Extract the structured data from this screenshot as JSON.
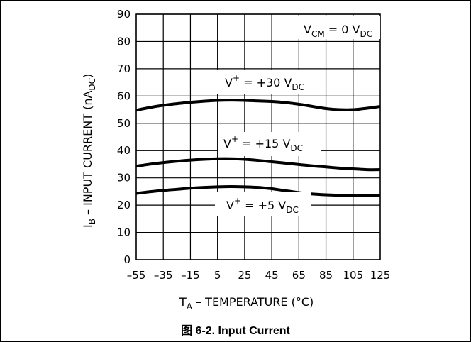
{
  "figure": {
    "caption": "图 6-2. Input Current"
  },
  "chart_data": {
    "type": "line",
    "title": "",
    "xlabel": {
      "main": "T",
      "sub": "A",
      "rest": " – TEMPERATURE (°C)"
    },
    "ylabel": {
      "main": "I",
      "sub": "B",
      "rest": " – INPUT CURRENT (nA",
      "unit_sub": "DC",
      "close": ")"
    },
    "xlim": [
      -55,
      125
    ],
    "ylim": [
      0,
      90
    ],
    "x_ticks": [
      -55,
      -35,
      -15,
      5,
      25,
      45,
      65,
      85,
      105,
      125
    ],
    "y_ticks": [
      0,
      10,
      20,
      30,
      40,
      50,
      60,
      70,
      80,
      90
    ],
    "grid": true,
    "condition": {
      "main": "V",
      "sub1": "CM",
      "mid": " = 0 V",
      "sub2": "DC"
    },
    "series": [
      {
        "name": "V+ = +30 VDC",
        "label": {
          "main": "V",
          "sup": "+",
          "mid": " = +30 V",
          "sub": "DC"
        },
        "x": [
          -55,
          -45,
          -35,
          -25,
          -15,
          -5,
          5,
          15,
          25,
          35,
          45,
          55,
          65,
          75,
          85,
          95,
          105,
          115,
          125
        ],
        "y": [
          54.8,
          55.8,
          56.6,
          57.2,
          57.7,
          58.1,
          58.4,
          58.5,
          58.4,
          58.2,
          58.0,
          57.6,
          57.0,
          56.2,
          55.4,
          55.0,
          55.0,
          55.5,
          56.2
        ]
      },
      {
        "name": "V+ = +15 VDC",
        "label": {
          "main": "V",
          "sup": "+",
          "mid": " = +15 V",
          "sub": "DC"
        },
        "x": [
          -55,
          -45,
          -35,
          -25,
          -15,
          -5,
          5,
          15,
          25,
          35,
          45,
          55,
          65,
          75,
          85,
          95,
          105,
          115,
          125
        ],
        "y": [
          34.3,
          35.0,
          35.6,
          36.1,
          36.5,
          36.8,
          37.0,
          37.0,
          36.8,
          36.4,
          35.9,
          35.4,
          34.9,
          34.4,
          34.0,
          33.6,
          33.3,
          33.0,
          33.0
        ]
      },
      {
        "name": "V+ = +5 VDC",
        "label": {
          "main": "V",
          "sup": "+",
          "mid": " = +5 V",
          "sub": "DC"
        },
        "x": [
          -55,
          -45,
          -35,
          -25,
          -15,
          -5,
          5,
          15,
          25,
          35,
          45,
          55,
          65,
          75,
          85,
          95,
          105,
          115,
          125
        ],
        "y": [
          24.3,
          24.9,
          25.4,
          25.8,
          26.2,
          26.5,
          26.7,
          26.8,
          26.7,
          26.5,
          26.0,
          25.3,
          24.6,
          24.1,
          23.8,
          23.6,
          23.5,
          23.5,
          23.5
        ]
      }
    ]
  }
}
